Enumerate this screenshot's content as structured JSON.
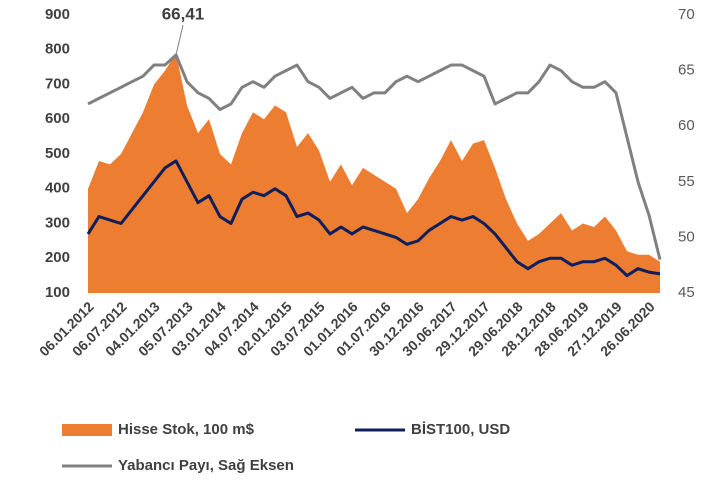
{
  "chart_data": {
    "type": "line",
    "annotation": {
      "text": "66,41"
    },
    "categories": [
      "06.01.2012",
      null,
      null,
      "06.07.2012",
      null,
      null,
      "04.01.2013",
      null,
      null,
      "05.07.2013",
      null,
      null,
      "03.01.2014",
      null,
      null,
      "04.07.2014",
      null,
      null,
      "02.01.2015",
      null,
      null,
      "03.07.2015",
      null,
      null,
      "01.01.2016",
      null,
      null,
      "01.07.2016",
      null,
      null,
      "30.12.2016",
      null,
      null,
      "30.06.2017",
      null,
      null,
      "29.12.2017",
      null,
      null,
      "29.06.2018",
      null,
      null,
      "28.12.2018",
      null,
      null,
      "28.06.2019",
      null,
      null,
      "27.12.2019",
      null,
      null,
      "26.06.2020",
      null
    ],
    "series": [
      {
        "name": "Hisse Stok, 100 m$",
        "kind": "area",
        "color": "#ed7d31",
        "values": [
          400,
          480,
          470,
          500,
          560,
          620,
          700,
          740,
          790,
          640,
          560,
          600,
          500,
          470,
          560,
          620,
          600,
          640,
          620,
          520,
          560,
          510,
          420,
          470,
          410,
          460,
          440,
          420,
          400,
          330,
          370,
          430,
          480,
          540,
          480,
          530,
          540,
          460,
          370,
          300,
          250,
          270,
          300,
          330,
          280,
          300,
          290,
          320,
          280,
          220,
          210,
          210,
          190
        ]
      },
      {
        "name": "BİST100, USD",
        "kind": "line",
        "color": "#0d1f5c",
        "values": [
          270,
          320,
          310,
          300,
          340,
          380,
          420,
          460,
          480,
          420,
          360,
          380,
          320,
          300,
          370,
          390,
          380,
          400,
          380,
          320,
          330,
          310,
          270,
          290,
          270,
          290,
          280,
          270,
          260,
          240,
          250,
          280,
          300,
          320,
          310,
          320,
          300,
          270,
          230,
          190,
          170,
          190,
          200,
          200,
          180,
          190,
          190,
          200,
          180,
          150,
          170,
          160,
          155
        ]
      },
      {
        "name": "Yabancı Payı, Sağ Eksen",
        "kind": "line",
        "axis": "y2",
        "color": "#808080",
        "values": [
          62,
          62.5,
          63,
          63.5,
          64,
          64.5,
          65.5,
          65.5,
          66.41,
          64,
          63,
          62.5,
          61.5,
          62,
          63.5,
          64,
          63.5,
          64.5,
          65,
          65.5,
          64,
          63.5,
          62.5,
          63,
          63.5,
          62.5,
          63,
          63,
          64,
          64.5,
          64,
          64.5,
          65,
          65.5,
          65.5,
          65,
          64.5,
          62,
          62.5,
          63,
          63,
          64,
          65.5,
          65,
          64,
          63.5,
          63.5,
          64,
          63,
          59,
          55,
          52,
          48
        ]
      }
    ],
    "ylim": [
      100,
      900
    ],
    "yticks": [
      100,
      200,
      300,
      400,
      500,
      600,
      700,
      800,
      900
    ],
    "y2lim": [
      45,
      70
    ],
    "y2ticks": [
      45,
      50,
      55,
      60,
      65,
      70
    ]
  }
}
